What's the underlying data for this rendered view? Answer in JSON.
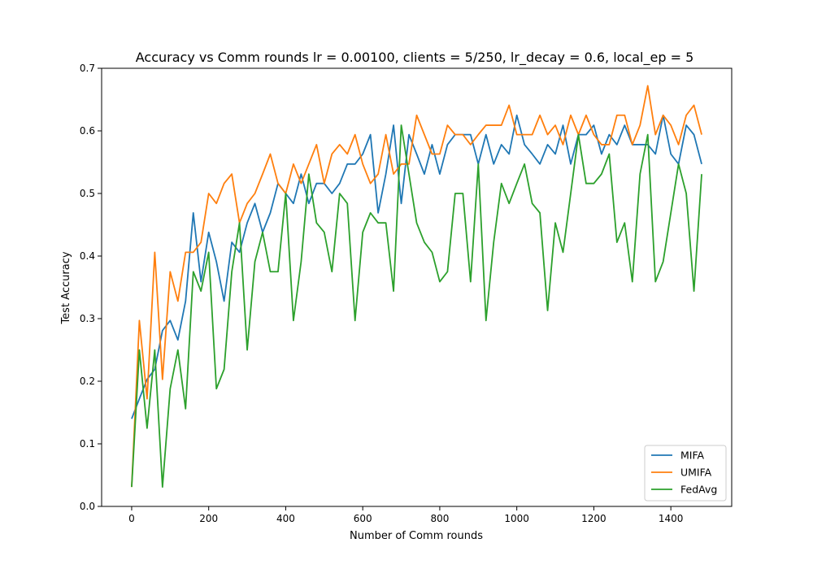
{
  "chart_data": {
    "type": "line",
    "title": "Accuracy vs Comm rounds lr = 0.00100, clients = 5/250, lr_decay = 0.6, local_ep = 5",
    "xlabel": "Number of Comm rounds",
    "ylabel": "Test Accuracy",
    "xlim": [
      -78,
      1558
    ],
    "ylim": [
      0,
      0.7
    ],
    "xticks": [
      0,
      200,
      400,
      600,
      800,
      1000,
      1200,
      1400
    ],
    "yticks": [
      0.0,
      0.1,
      0.2,
      0.3,
      0.4,
      0.5,
      0.6,
      0.7
    ],
    "ytick_labels": [
      "0.0",
      "0.1",
      "0.2",
      "0.3",
      "0.4",
      "0.5",
      "0.6",
      "0.7"
    ],
    "grid": false,
    "legend_position": "lower-right",
    "x": [
      0,
      20,
      40,
      60,
      80,
      100,
      120,
      140,
      160,
      180,
      200,
      220,
      240,
      260,
      280,
      300,
      320,
      340,
      360,
      380,
      400,
      420,
      440,
      460,
      480,
      500,
      520,
      540,
      560,
      580,
      600,
      620,
      640,
      660,
      680,
      700,
      720,
      740,
      760,
      780,
      800,
      820,
      840,
      860,
      880,
      900,
      920,
      940,
      960,
      980,
      1000,
      1020,
      1040,
      1060,
      1080,
      1100,
      1120,
      1140,
      1160,
      1180,
      1200,
      1220,
      1240,
      1260,
      1280,
      1300,
      1320,
      1340,
      1360,
      1380,
      1400,
      1420,
      1440,
      1460,
      1480
    ],
    "series": [
      {
        "name": "MIFA",
        "color": "#1f77b4",
        "values": [
          0.14,
          0.172,
          0.203,
          0.219,
          0.281,
          0.297,
          0.266,
          0.328,
          0.469,
          0.359,
          0.438,
          0.391,
          0.328,
          0.422,
          0.406,
          0.453,
          0.484,
          0.438,
          0.469,
          0.516,
          0.5,
          0.484,
          0.531,
          0.484,
          0.516,
          0.516,
          0.5,
          0.516,
          0.547,
          0.547,
          0.563,
          0.594,
          0.469,
          0.531,
          0.609,
          0.484,
          0.594,
          0.563,
          0.531,
          0.578,
          0.531,
          0.578,
          0.594,
          0.594,
          0.594,
          0.547,
          0.594,
          0.547,
          0.578,
          0.563,
          0.625,
          0.578,
          0.563,
          0.547,
          0.578,
          0.563,
          0.609,
          0.547,
          0.594,
          0.594,
          0.609,
          0.563,
          0.594,
          0.578,
          0.609,
          0.578,
          0.578,
          0.578,
          0.563,
          0.625,
          0.563,
          0.547,
          0.609,
          0.594,
          0.547
        ]
      },
      {
        "name": "UMIFA",
        "color": "#ff7f0e",
        "values": [
          0.031,
          0.297,
          0.172,
          0.406,
          0.203,
          0.375,
          0.328,
          0.406,
          0.406,
          0.422,
          0.5,
          0.484,
          0.516,
          0.531,
          0.453,
          0.484,
          0.5,
          0.531,
          0.563,
          0.516,
          0.5,
          0.547,
          0.516,
          0.547,
          0.578,
          0.516,
          0.563,
          0.578,
          0.563,
          0.594,
          0.547,
          0.516,
          0.531,
          0.594,
          0.531,
          0.547,
          0.547,
          0.625,
          0.594,
          0.563,
          0.563,
          0.609,
          0.594,
          0.594,
          0.578,
          0.594,
          0.609,
          0.609,
          0.609,
          0.641,
          0.594,
          0.594,
          0.594,
          0.625,
          0.594,
          0.609,
          0.578,
          0.625,
          0.594,
          0.625,
          0.594,
          0.578,
          0.578,
          0.625,
          0.625,
          0.578,
          0.609,
          0.672,
          0.594,
          0.625,
          0.609,
          0.578,
          0.625,
          0.641,
          0.594
        ]
      },
      {
        "name": "FedAvg",
        "color": "#2ca02c",
        "values": [
          0.031,
          0.25,
          0.125,
          0.25,
          0.031,
          0.188,
          0.25,
          0.156,
          0.375,
          0.344,
          0.406,
          0.188,
          0.219,
          0.375,
          0.453,
          0.25,
          0.391,
          0.438,
          0.375,
          0.375,
          0.5,
          0.297,
          0.391,
          0.531,
          0.453,
          0.438,
          0.375,
          0.5,
          0.484,
          0.297,
          0.438,
          0.469,
          0.453,
          0.453,
          0.344,
          0.609,
          0.531,
          0.453,
          0.422,
          0.406,
          0.359,
          0.375,
          0.5,
          0.5,
          0.359,
          0.547,
          0.297,
          0.422,
          0.516,
          0.484,
          0.516,
          0.547,
          0.484,
          0.469,
          0.313,
          0.453,
          0.406,
          0.5,
          0.594,
          0.516,
          0.516,
          0.531,
          0.563,
          0.422,
          0.453,
          0.359,
          0.531,
          0.594,
          0.359,
          0.391,
          0.469,
          0.547,
          0.5,
          0.344,
          0.531
        ]
      }
    ]
  }
}
